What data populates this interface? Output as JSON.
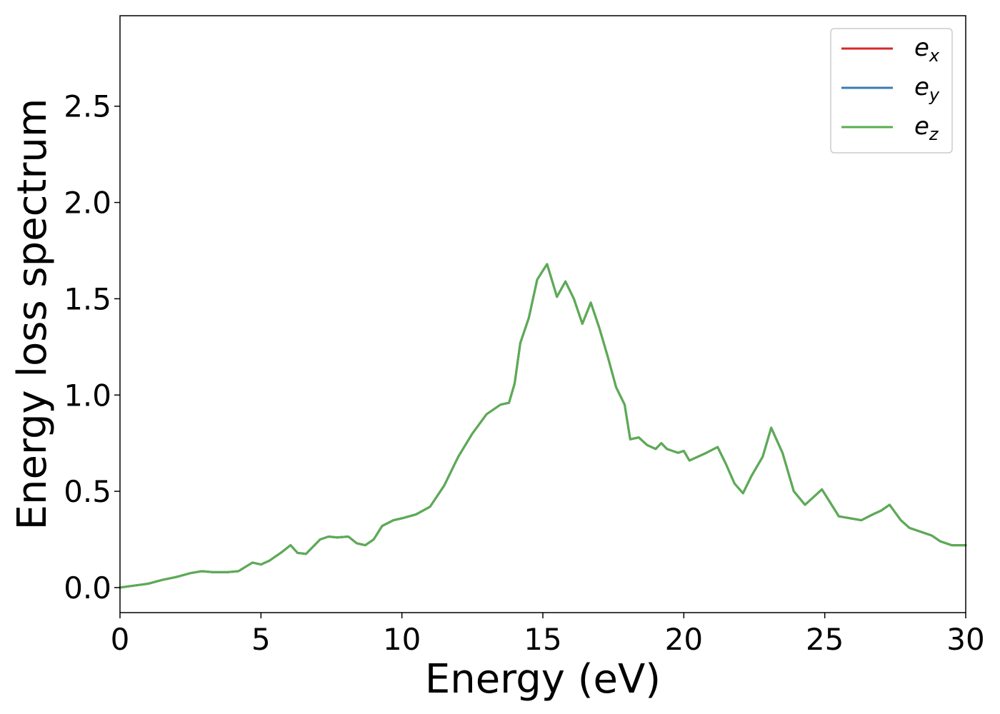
{
  "chart_data": {
    "type": "line",
    "title": "",
    "xlabel": "Energy (eV)",
    "ylabel": "Energy loss spectrum",
    "xlim": [
      0,
      30
    ],
    "ylim": [
      -0.13,
      2.97
    ],
    "xticks": [
      0,
      5,
      10,
      15,
      20,
      25,
      30
    ],
    "xtick_labels": [
      "0",
      "5",
      "10",
      "15",
      "20",
      "25",
      "30"
    ],
    "yticks": [
      0.0,
      0.5,
      1.0,
      1.5,
      2.0,
      2.5
    ],
    "ytick_labels": [
      "0.0",
      "0.5",
      "1.0",
      "1.5",
      "2.0",
      "2.5"
    ],
    "grid": false,
    "legend_position": "top-right",
    "series": [
      {
        "name": "e_x",
        "label_base": "e",
        "label_sub": "x",
        "color": "#d62728",
        "ref": "ez"
      },
      {
        "name": "e_y",
        "label_base": "e",
        "label_sub": "y",
        "color": "#3a7bb0",
        "ref": "ez"
      },
      {
        "name": "e_z",
        "label_base": "e",
        "label_sub": "z",
        "color": "#5aad52",
        "x": [
          0,
          0.5,
          1,
          1.5,
          2,
          2.5,
          2.9,
          3.3,
          3.8,
          4.2,
          4.7,
          5.0,
          5.3,
          5.7,
          6.05,
          6.3,
          6.6,
          6.9,
          7.1,
          7.4,
          7.7,
          8.1,
          8.4,
          8.7,
          9.0,
          9.3,
          9.7,
          10.0,
          10.5,
          11.0,
          11.5,
          12.0,
          12.5,
          13.0,
          13.5,
          13.8,
          14.0,
          14.2,
          14.5,
          14.8,
          15.15,
          15.5,
          15.8,
          16.1,
          16.4,
          16.7,
          17.0,
          17.3,
          17.6,
          17.9,
          18.1,
          18.4,
          18.7,
          19.0,
          19.2,
          19.4,
          19.6,
          19.8,
          20.0,
          20.2,
          20.5,
          20.8,
          21.2,
          21.5,
          21.8,
          22.1,
          22.4,
          22.8,
          23.1,
          23.5,
          23.9,
          24.3,
          24.6,
          24.9,
          25.2,
          25.5,
          25.9,
          26.3,
          26.7,
          27.0,
          27.3,
          27.7,
          28.0,
          28.4,
          28.8,
          29.1,
          29.5,
          30.0
        ],
        "y": [
          0.0,
          0.01,
          0.02,
          0.04,
          0.055,
          0.075,
          0.085,
          0.08,
          0.08,
          0.085,
          0.13,
          0.12,
          0.14,
          0.18,
          0.22,
          0.18,
          0.175,
          0.22,
          0.25,
          0.265,
          0.26,
          0.265,
          0.23,
          0.22,
          0.25,
          0.32,
          0.35,
          0.36,
          0.38,
          0.42,
          0.53,
          0.68,
          0.8,
          0.9,
          0.95,
          0.96,
          1.06,
          1.27,
          1.4,
          1.6,
          1.68,
          1.51,
          1.59,
          1.5,
          1.37,
          1.48,
          1.35,
          1.2,
          1.04,
          0.95,
          0.77,
          0.78,
          0.74,
          0.72,
          0.75,
          0.72,
          0.71,
          0.7,
          0.71,
          0.66,
          0.68,
          0.7,
          0.73,
          0.64,
          0.54,
          0.49,
          0.58,
          0.68,
          0.83,
          0.7,
          0.5,
          0.43,
          0.47,
          0.51,
          0.44,
          0.37,
          0.36,
          0.35,
          0.38,
          0.4,
          0.43,
          0.35,
          0.31,
          0.29,
          0.27,
          0.24,
          0.22,
          0.22
        ]
      }
    ]
  }
}
